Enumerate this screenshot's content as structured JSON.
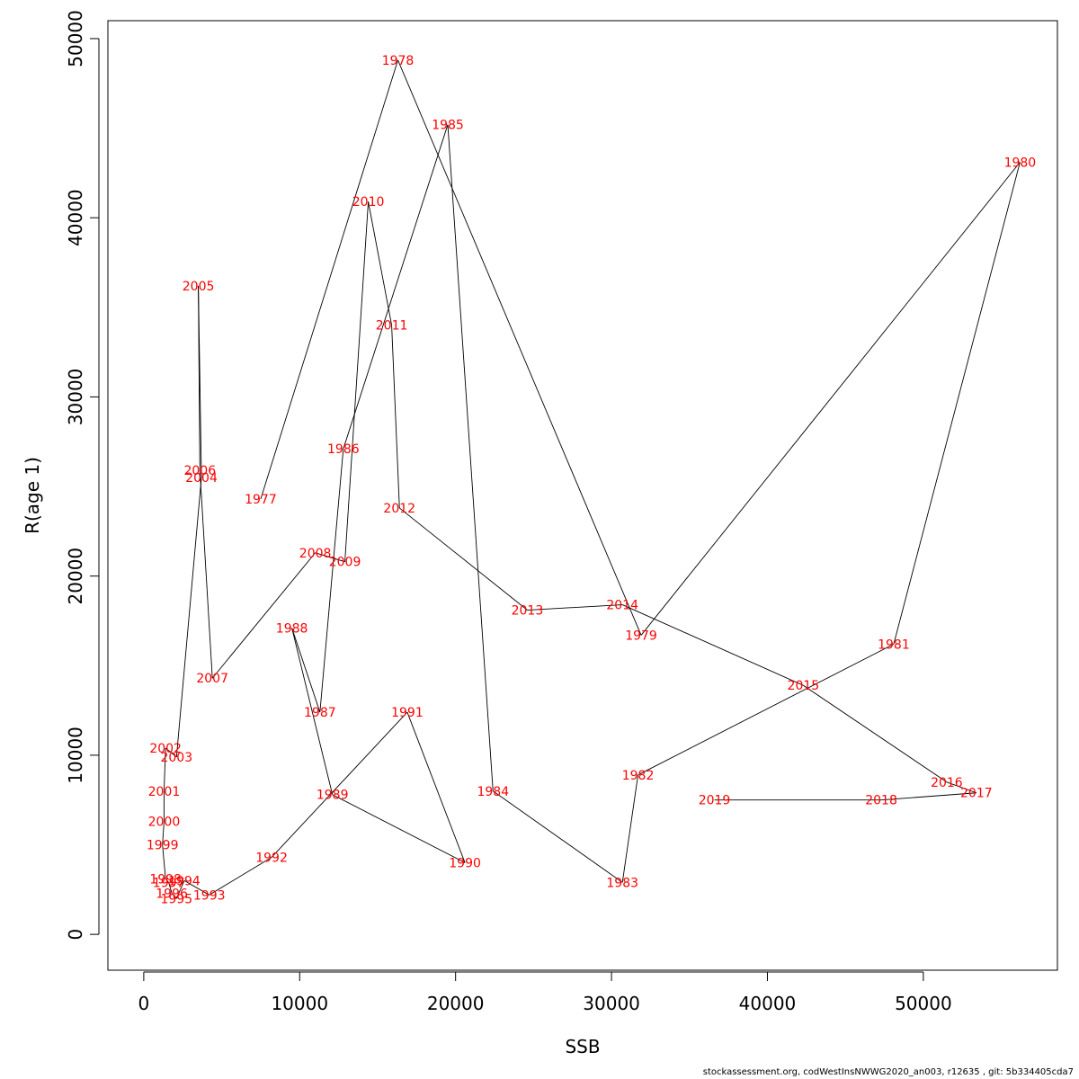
{
  "chart_data": {
    "type": "line",
    "xlabel": "SSB",
    "ylabel": "R(age 1)",
    "xlim": [
      -2300,
      58600
    ],
    "ylim": [
      -2000,
      51000
    ],
    "xticks": [
      0,
      10000,
      20000,
      30000,
      40000,
      50000
    ],
    "yticks": [
      0,
      10000,
      20000,
      30000,
      40000,
      50000
    ],
    "xtick_labels": [
      "0",
      "10000",
      "20000",
      "30000",
      "40000",
      "50000"
    ],
    "ytick_labels": [
      "0",
      "10000",
      "20000",
      "30000",
      "40000",
      "50000"
    ],
    "label_color": "#ff0000",
    "line_color": "#000000",
    "points": [
      {
        "year": "1977",
        "x": 7500,
        "y": 24300
      },
      {
        "year": "1978",
        "x": 16300,
        "y": 48800
      },
      {
        "year": "1979",
        "x": 31900,
        "y": 16700
      },
      {
        "year": "1980",
        "x": 56200,
        "y": 43100
      },
      {
        "year": "1981",
        "x": 48100,
        "y": 16200
      },
      {
        "year": "1982",
        "x": 31700,
        "y": 8900
      },
      {
        "year": "1983",
        "x": 30700,
        "y": 2900
      },
      {
        "year": "1984",
        "x": 22400,
        "y": 8000
      },
      {
        "year": "1985",
        "x": 19500,
        "y": 45200
      },
      {
        "year": "1986",
        "x": 12800,
        "y": 27100
      },
      {
        "year": "1987",
        "x": 11300,
        "y": 12400
      },
      {
        "year": "1988",
        "x": 9500,
        "y": 17100
      },
      {
        "year": "1989",
        "x": 12100,
        "y": 7800
      },
      {
        "year": "1990",
        "x": 20600,
        "y": 4000
      },
      {
        "year": "1991",
        "x": 16900,
        "y": 12400
      },
      {
        "year": "1992",
        "x": 8200,
        "y": 4300
      },
      {
        "year": "1993",
        "x": 4200,
        "y": 2200
      },
      {
        "year": "1994",
        "x": 2600,
        "y": 3000
      },
      {
        "year": "1995",
        "x": 2100,
        "y": 2000
      },
      {
        "year": "1996",
        "x": 1800,
        "y": 2300
      },
      {
        "year": "1997",
        "x": 1600,
        "y": 2900
      },
      {
        "year": "1998",
        "x": 1400,
        "y": 3100
      },
      {
        "year": "1999",
        "x": 1200,
        "y": 5000
      },
      {
        "year": "2000",
        "x": 1300,
        "y": 6300
      },
      {
        "year": "2001",
        "x": 1300,
        "y": 8000
      },
      {
        "year": "2002",
        "x": 1400,
        "y": 10400
      },
      {
        "year": "2003",
        "x": 2100,
        "y": 9900
      },
      {
        "year": "2004",
        "x": 3700,
        "y": 25500
      },
      {
        "year": "2005",
        "x": 3500,
        "y": 36200
      },
      {
        "year": "2006",
        "x": 3600,
        "y": 25900
      },
      {
        "year": "2007",
        "x": 4400,
        "y": 14300
      },
      {
        "year": "2008",
        "x": 11000,
        "y": 21300
      },
      {
        "year": "2009",
        "x": 12900,
        "y": 20800
      },
      {
        "year": "2010",
        "x": 14400,
        "y": 40900
      },
      {
        "year": "2011",
        "x": 15900,
        "y": 34000
      },
      {
        "year": "2012",
        "x": 16400,
        "y": 23800
      },
      {
        "year": "2013",
        "x": 24600,
        "y": 18100
      },
      {
        "year": "2014",
        "x": 30700,
        "y": 18400
      },
      {
        "year": "2015",
        "x": 42300,
        "y": 13900
      },
      {
        "year": "2016",
        "x": 51500,
        "y": 8500
      },
      {
        "year": "2017",
        "x": 53400,
        "y": 7900
      },
      {
        "year": "2018",
        "x": 47300,
        "y": 7500
      },
      {
        "year": "2019",
        "x": 36600,
        "y": 7500
      }
    ]
  },
  "footer": "stockassessment.org, codWestInsNWWG2020_an003, r12635 , git: 5b334405cda7"
}
